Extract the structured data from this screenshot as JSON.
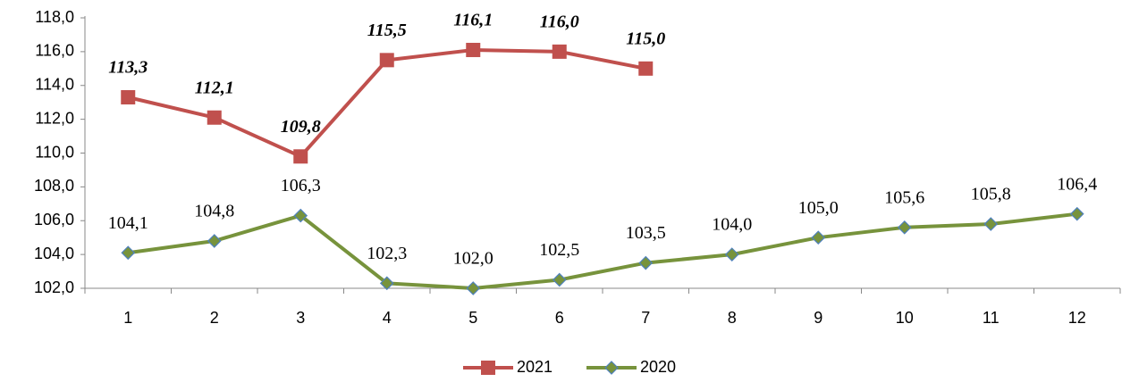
{
  "chart_data": {
    "type": "line",
    "categories": [
      "1",
      "2",
      "3",
      "4",
      "5",
      "6",
      "7",
      "8",
      "9",
      "10",
      "11",
      "12"
    ],
    "series": [
      {
        "name": "2021",
        "color": "#c0504d",
        "marker": "square",
        "label_style": "bold-italic",
        "values": [
          113.3,
          112.1,
          109.8,
          115.5,
          116.1,
          116.0,
          115.0,
          null,
          null,
          null,
          null,
          null
        ],
        "value_labels": [
          "113,3",
          "112,1",
          "109,8",
          "115,5",
          "116,1",
          "116,0",
          "115,0",
          null,
          null,
          null,
          null,
          null
        ]
      },
      {
        "name": "2020",
        "color": "#77933c",
        "marker": "diamond",
        "label_style": "normal",
        "values": [
          104.1,
          104.8,
          106.3,
          102.3,
          102.0,
          102.5,
          103.5,
          104.0,
          105.0,
          105.6,
          105.8,
          106.4
        ],
        "value_labels": [
          "104,1",
          "104,8",
          "106,3",
          "102,3",
          "102,0",
          "102,5",
          "103,5",
          "104,0",
          "105,0",
          "105,6",
          "105,8",
          "106,4"
        ]
      }
    ],
    "ylim": [
      102,
      118
    ],
    "yticks": [
      {
        "value": 102,
        "label": "102,0"
      },
      {
        "value": 104,
        "label": "104,0"
      },
      {
        "value": 106,
        "label": "106,0"
      },
      {
        "value": 108,
        "label": "108,0"
      },
      {
        "value": 110,
        "label": "110,0"
      },
      {
        "value": 112,
        "label": "112,0"
      },
      {
        "value": 114,
        "label": "114,0"
      },
      {
        "value": 116,
        "label": "116,0"
      },
      {
        "value": 118,
        "label": "118,0"
      }
    ],
    "grid": false,
    "legend": "bottom"
  }
}
